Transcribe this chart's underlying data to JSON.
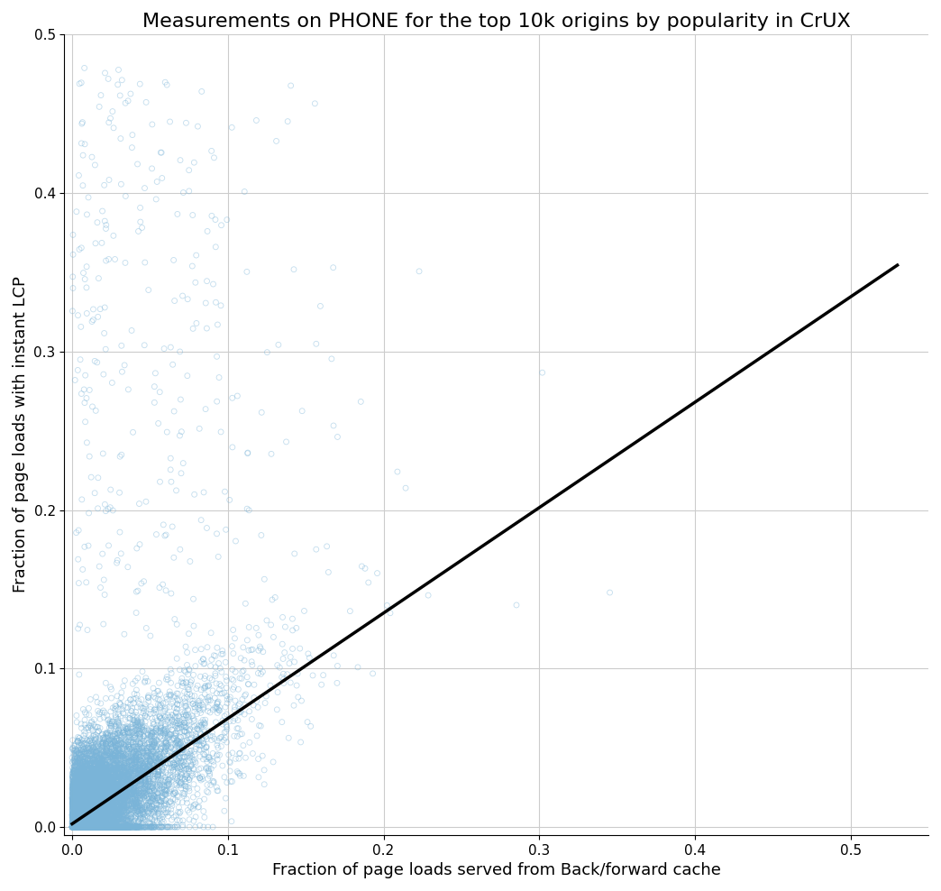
{
  "title": "Measurements on PHONE for the top 10k origins by popularity in CrUX",
  "xlabel": "Fraction of page loads served from Back/forward cache",
  "ylabel": "Fraction of page loads with instant LCP",
  "xlim": [
    -0.005,
    0.55
  ],
  "ylim": [
    -0.005,
    0.5
  ],
  "xticks": [
    0.0,
    0.1,
    0.2,
    0.3,
    0.4,
    0.5
  ],
  "yticks": [
    0.0,
    0.1,
    0.2,
    0.3,
    0.4,
    0.5
  ],
  "scatter_color": "#7ab4d8",
  "scatter_alpha": 0.45,
  "scatter_size": 18,
  "scatter_linewidth": 0.6,
  "line_color": "black",
  "line_width": 2.5,
  "line_slope": 0.665,
  "line_intercept": 0.002,
  "n_points": 10000,
  "seed": 42,
  "background_color": "#ffffff",
  "grid_color": "#cccccc",
  "title_fontsize": 16,
  "label_fontsize": 13
}
